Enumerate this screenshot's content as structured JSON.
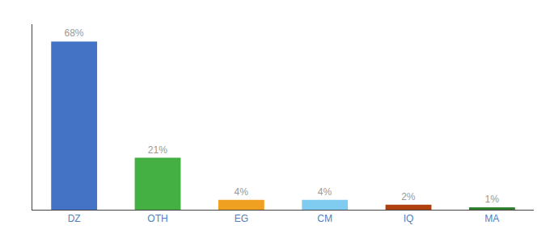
{
  "chart_data": {
    "type": "bar",
    "categories": [
      "DZ",
      "OTH",
      "EG",
      "CM",
      "IQ",
      "MA"
    ],
    "values": [
      68,
      21,
      4,
      4,
      2,
      1
    ],
    "value_labels": [
      "68%",
      "21%",
      "4%",
      "4%",
      "2%",
      "1%"
    ],
    "colors": [
      "#4472c4",
      "#44b044",
      "#f0a020",
      "#80ccf0",
      "#b04010",
      "#308030"
    ],
    "ylim": [
      0,
      75
    ],
    "data_labels": true,
    "grid": false,
    "tick_labels": "x"
  }
}
